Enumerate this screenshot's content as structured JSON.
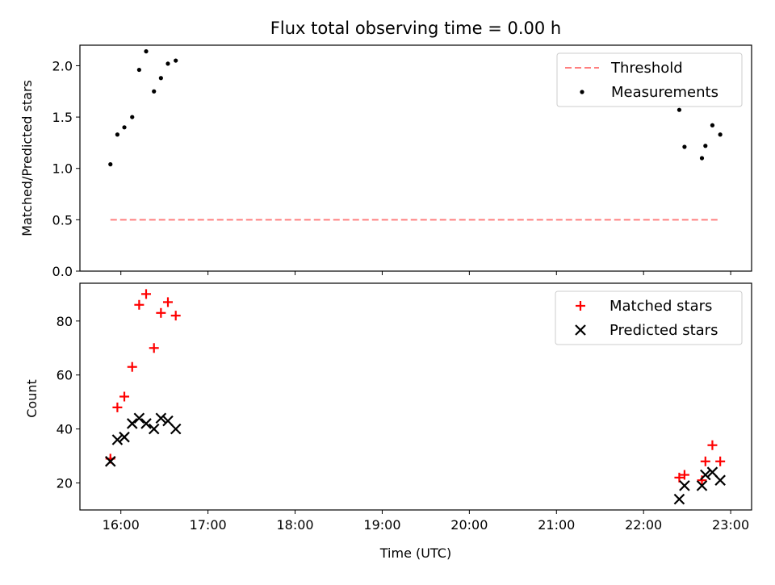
{
  "chart_data": [
    {
      "type": "scatter",
      "title": "Flux total observing time = 0.00 h",
      "ylabel": "Matched/Predicted stars",
      "xlabel": "",
      "ylim": [
        0,
        2.2
      ],
      "xlim": [
        15.53,
        23.24
      ],
      "yticks": [
        0.0,
        0.5,
        1.0,
        1.5,
        2.0
      ],
      "ytick_labels": [
        "0.0",
        "0.5",
        "1.0",
        "1.5",
        "2.0"
      ],
      "legend_position": "top-right",
      "grid": false,
      "threshold": {
        "name": "Threshold",
        "value": 0.5,
        "x_start": 15.88,
        "x_end": 22.88,
        "color": "#ff7f7f",
        "style": "dashed"
      },
      "series": [
        {
          "name": "Measurements",
          "color": "#000000",
          "marker": "dot",
          "x": [
            15.88,
            15.96,
            16.04,
            16.13,
            16.21,
            16.29,
            16.38,
            16.46,
            16.54,
            16.63,
            22.41,
            22.47,
            22.67,
            22.71,
            22.79,
            22.88
          ],
          "y": [
            1.04,
            1.33,
            1.4,
            1.5,
            1.96,
            2.14,
            1.75,
            1.88,
            2.02,
            2.05,
            1.57,
            1.21,
            1.1,
            1.22,
            1.42,
            1.33
          ]
        }
      ]
    },
    {
      "type": "scatter",
      "title": "",
      "xlabel": "Time (UTC)",
      "ylabel": "Count",
      "ylim": [
        10,
        94
      ],
      "xlim": [
        15.53,
        23.24
      ],
      "yticks": [
        20,
        40,
        60,
        80
      ],
      "ytick_labels": [
        "20",
        "40",
        "60",
        "80"
      ],
      "xticks": [
        16,
        17,
        18,
        19,
        20,
        21,
        22,
        23
      ],
      "xtick_labels": [
        "16:00",
        "17:00",
        "18:00",
        "19:00",
        "20:00",
        "21:00",
        "22:00",
        "23:00"
      ],
      "legend_position": "top-right",
      "grid": false,
      "series": [
        {
          "name": "Matched stars",
          "color": "#ff0000",
          "marker": "plus",
          "x": [
            15.88,
            15.96,
            16.04,
            16.13,
            16.21,
            16.29,
            16.38,
            16.46,
            16.54,
            16.63,
            22.41,
            22.47,
            22.67,
            22.71,
            22.79,
            22.88
          ],
          "y": [
            29,
            48,
            52,
            63,
            86,
            90,
            70,
            83,
            87,
            82,
            22,
            23,
            21,
            28,
            34,
            28
          ]
        },
        {
          "name": "Predicted stars",
          "color": "#000000",
          "marker": "x",
          "x": [
            15.88,
            15.96,
            16.04,
            16.13,
            16.21,
            16.29,
            16.38,
            16.46,
            16.54,
            16.63,
            22.41,
            22.47,
            22.67,
            22.71,
            22.79,
            22.88
          ],
          "y": [
            28,
            36,
            37,
            42,
            44,
            42,
            40,
            44,
            43,
            40,
            14,
            19,
            19,
            23,
            24,
            21
          ]
        }
      ]
    }
  ]
}
